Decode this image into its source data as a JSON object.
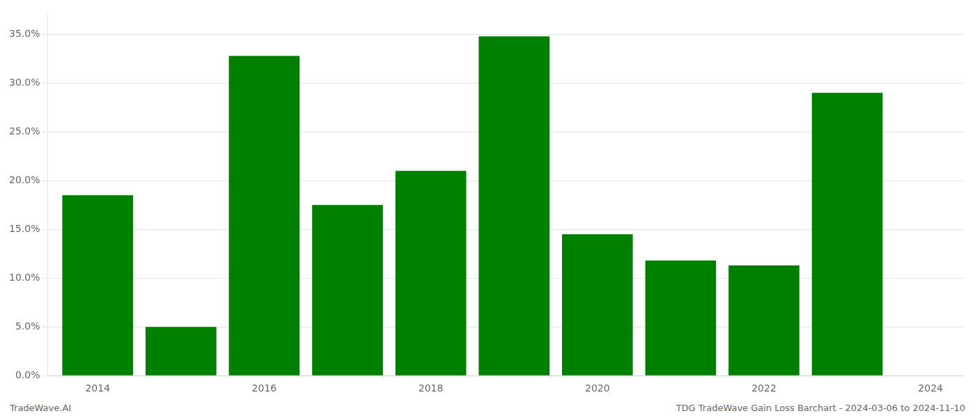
{
  "chart_data": {
    "type": "bar",
    "x": [
      2014,
      2015,
      2016,
      2017,
      2018,
      2019,
      2020,
      2021,
      2022,
      2023
    ],
    "values": [
      0.185,
      0.05,
      0.328,
      0.175,
      0.21,
      0.348,
      0.145,
      0.118,
      0.113,
      0.29
    ],
    "color": "#008000",
    "xlim": [
      2013.4,
      2024.4
    ],
    "xticks": [
      2014,
      2016,
      2018,
      2020,
      2022,
      2024
    ],
    "ylim": [
      0,
      0.37
    ],
    "yticks": [
      {
        "value": 0.0,
        "label": "0.0%"
      },
      {
        "value": 0.05,
        "label": "5.0%"
      },
      {
        "value": 0.1,
        "label": "10.0%"
      },
      {
        "value": 0.15,
        "label": "15.0%"
      },
      {
        "value": 0.2,
        "label": "20.0%"
      },
      {
        "value": 0.25,
        "label": "25.0%"
      },
      {
        "value": 0.3,
        "label": "30.0%"
      },
      {
        "value": 0.35,
        "label": "35.0%"
      }
    ],
    "grid": true,
    "annotations": [
      "TradeWave.AI",
      "TDG TradeWave Gain Loss Barchart - 2024-03-06 to 2024-11-10"
    ]
  }
}
